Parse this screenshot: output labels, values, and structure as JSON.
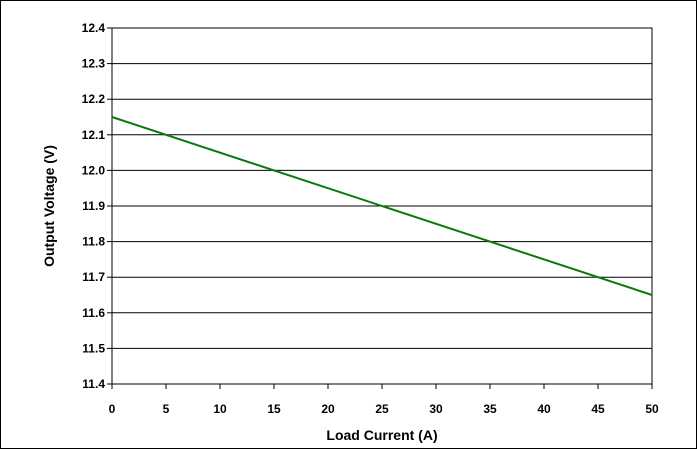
{
  "chart_data": {
    "type": "line",
    "xlabel": "Load Current (A)",
    "ylabel": "Output Voltage (V)",
    "xlim": [
      0,
      50
    ],
    "ylim": [
      11.4,
      12.4
    ],
    "x_ticks": [
      "0",
      "5",
      "10",
      "15",
      "20",
      "25",
      "30",
      "35",
      "40",
      "45",
      "50"
    ],
    "y_ticks": [
      "11.4",
      "11.5",
      "11.6",
      "11.7",
      "11.8",
      "11.9",
      "12.0",
      "12.1",
      "12.2",
      "12.3",
      "12.4"
    ],
    "grid": "horizontal",
    "series": [
      {
        "color": "#0a7a0a",
        "x": [
          0,
          50
        ],
        "y": [
          12.15,
          11.65
        ]
      }
    ]
  }
}
